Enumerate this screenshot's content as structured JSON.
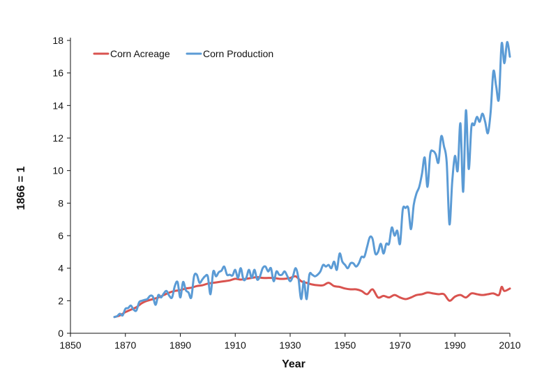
{
  "chart_data": {
    "type": "line",
    "xlabel": "Year",
    "ylabel": "1866 = 1",
    "xlim": [
      1850,
      2010
    ],
    "ylim": [
      0,
      18
    ],
    "x_ticks": [
      1850,
      1870,
      1890,
      1910,
      1930,
      1950,
      1970,
      1990,
      2010
    ],
    "y_ticks": [
      0,
      2,
      4,
      6,
      8,
      10,
      12,
      14,
      16,
      18
    ],
    "grid": false,
    "legend_position": "top-left",
    "series": [
      {
        "name": "Corn Acreage",
        "color": "#d9534f",
        "points": [
          [
            1866,
            1.0
          ],
          [
            1868,
            1.1
          ],
          [
            1870,
            1.3
          ],
          [
            1872,
            1.45
          ],
          [
            1874,
            1.6
          ],
          [
            1876,
            1.85
          ],
          [
            1878,
            2.0
          ],
          [
            1880,
            2.1
          ],
          [
            1882,
            2.2
          ],
          [
            1884,
            2.35
          ],
          [
            1886,
            2.5
          ],
          [
            1888,
            2.6
          ],
          [
            1890,
            2.65
          ],
          [
            1892,
            2.75
          ],
          [
            1894,
            2.8
          ],
          [
            1896,
            2.9
          ],
          [
            1898,
            2.95
          ],
          [
            1900,
            3.05
          ],
          [
            1902,
            3.1
          ],
          [
            1904,
            3.15
          ],
          [
            1906,
            3.2
          ],
          [
            1908,
            3.25
          ],
          [
            1910,
            3.35
          ],
          [
            1912,
            3.3
          ],
          [
            1914,
            3.35
          ],
          [
            1916,
            3.4
          ],
          [
            1918,
            3.45
          ],
          [
            1920,
            3.4
          ],
          [
            1922,
            3.4
          ],
          [
            1924,
            3.4
          ],
          [
            1926,
            3.35
          ],
          [
            1928,
            3.35
          ],
          [
            1930,
            3.4
          ],
          [
            1932,
            3.5
          ],
          [
            1934,
            3.2
          ],
          [
            1936,
            3.1
          ],
          [
            1938,
            3.0
          ],
          [
            1940,
            2.95
          ],
          [
            1942,
            2.95
          ],
          [
            1944,
            3.1
          ],
          [
            1946,
            2.9
          ],
          [
            1948,
            2.85
          ],
          [
            1950,
            2.75
          ],
          [
            1952,
            2.7
          ],
          [
            1954,
            2.7
          ],
          [
            1956,
            2.6
          ],
          [
            1958,
            2.4
          ],
          [
            1960,
            2.7
          ],
          [
            1962,
            2.2
          ],
          [
            1964,
            2.3
          ],
          [
            1966,
            2.2
          ],
          [
            1968,
            2.35
          ],
          [
            1970,
            2.2
          ],
          [
            1972,
            2.1
          ],
          [
            1974,
            2.2
          ],
          [
            1976,
            2.35
          ],
          [
            1978,
            2.4
          ],
          [
            1980,
            2.5
          ],
          [
            1982,
            2.45
          ],
          [
            1984,
            2.4
          ],
          [
            1986,
            2.4
          ],
          [
            1988,
            2.0
          ],
          [
            1990,
            2.25
          ],
          [
            1992,
            2.35
          ],
          [
            1994,
            2.2
          ],
          [
            1996,
            2.45
          ],
          [
            1998,
            2.4
          ],
          [
            2000,
            2.35
          ],
          [
            2002,
            2.4
          ],
          [
            2004,
            2.45
          ],
          [
            2006,
            2.35
          ],
          [
            2007,
            2.85
          ],
          [
            2008,
            2.6
          ],
          [
            2010,
            2.75
          ]
        ]
      },
      {
        "name": "Corn Production",
        "color": "#5b9bd5",
        "points": [
          [
            1866,
            1.0
          ],
          [
            1867,
            1.05
          ],
          [
            1868,
            1.2
          ],
          [
            1869,
            1.1
          ],
          [
            1870,
            1.5
          ],
          [
            1871,
            1.55
          ],
          [
            1872,
            1.7
          ],
          [
            1873,
            1.45
          ],
          [
            1874,
            1.4
          ],
          [
            1875,
            1.9
          ],
          [
            1876,
            2.0
          ],
          [
            1877,
            2.05
          ],
          [
            1878,
            2.1
          ],
          [
            1879,
            2.3
          ],
          [
            1880,
            2.25
          ],
          [
            1881,
            1.75
          ],
          [
            1882,
            2.35
          ],
          [
            1883,
            2.2
          ],
          [
            1884,
            2.45
          ],
          [
            1885,
            2.6
          ],
          [
            1886,
            2.3
          ],
          [
            1887,
            2.2
          ],
          [
            1888,
            2.9
          ],
          [
            1889,
            3.15
          ],
          [
            1890,
            2.2
          ],
          [
            1891,
            3.15
          ],
          [
            1892,
            2.65
          ],
          [
            1893,
            2.5
          ],
          [
            1894,
            2.2
          ],
          [
            1895,
            3.5
          ],
          [
            1896,
            3.6
          ],
          [
            1897,
            3.1
          ],
          [
            1898,
            3.3
          ],
          [
            1899,
            3.5
          ],
          [
            1900,
            3.5
          ],
          [
            1901,
            2.4
          ],
          [
            1902,
            3.8
          ],
          [
            1903,
            3.5
          ],
          [
            1904,
            3.75
          ],
          [
            1905,
            3.85
          ],
          [
            1906,
            4.1
          ],
          [
            1907,
            3.6
          ],
          [
            1908,
            3.6
          ],
          [
            1909,
            3.55
          ],
          [
            1910,
            3.9
          ],
          [
            1911,
            3.4
          ],
          [
            1912,
            4.0
          ],
          [
            1913,
            3.3
          ],
          [
            1914,
            3.4
          ],
          [
            1915,
            3.9
          ],
          [
            1916,
            3.4
          ],
          [
            1917,
            3.9
          ],
          [
            1918,
            3.3
          ],
          [
            1919,
            3.5
          ],
          [
            1920,
            4.0
          ],
          [
            1921,
            4.1
          ],
          [
            1922,
            3.8
          ],
          [
            1923,
            4.0
          ],
          [
            1924,
            3.2
          ],
          [
            1925,
            3.8
          ],
          [
            1926,
            3.6
          ],
          [
            1927,
            3.6
          ],
          [
            1928,
            3.8
          ],
          [
            1929,
            3.5
          ],
          [
            1930,
            3.2
          ],
          [
            1931,
            3.5
          ],
          [
            1932,
            4.0
          ],
          [
            1933,
            3.4
          ],
          [
            1934,
            2.1
          ],
          [
            1935,
            3.2
          ],
          [
            1936,
            2.1
          ],
          [
            1937,
            3.6
          ],
          [
            1938,
            3.6
          ],
          [
            1939,
            3.5
          ],
          [
            1940,
            3.6
          ],
          [
            1941,
            3.8
          ],
          [
            1942,
            4.2
          ],
          [
            1943,
            4.1
          ],
          [
            1944,
            4.2
          ],
          [
            1945,
            4.0
          ],
          [
            1946,
            4.4
          ],
          [
            1947,
            3.9
          ],
          [
            1948,
            4.9
          ],
          [
            1949,
            4.4
          ],
          [
            1950,
            4.2
          ],
          [
            1951,
            4.0
          ],
          [
            1952,
            4.3
          ],
          [
            1953,
            4.3
          ],
          [
            1954,
            4.1
          ],
          [
            1955,
            4.3
          ],
          [
            1956,
            4.7
          ],
          [
            1957,
            4.7
          ],
          [
            1958,
            5.3
          ],
          [
            1959,
            5.9
          ],
          [
            1960,
            5.8
          ],
          [
            1961,
            4.9
          ],
          [
            1962,
            5.0
          ],
          [
            1963,
            5.5
          ],
          [
            1964,
            4.9
          ],
          [
            1965,
            5.5
          ],
          [
            1966,
            5.5
          ],
          [
            1967,
            6.5
          ],
          [
            1968,
            6.0
          ],
          [
            1969,
            6.3
          ],
          [
            1970,
            5.5
          ],
          [
            1971,
            7.6
          ],
          [
            1972,
            7.7
          ],
          [
            1973,
            7.7
          ],
          [
            1974,
            6.4
          ],
          [
            1975,
            7.9
          ],
          [
            1976,
            8.6
          ],
          [
            1977,
            9.0
          ],
          [
            1978,
            9.8
          ],
          [
            1979,
            10.8
          ],
          [
            1980,
            9.0
          ],
          [
            1981,
            11.0
          ],
          [
            1982,
            11.2
          ],
          [
            1983,
            11.0
          ],
          [
            1984,
            10.5
          ],
          [
            1985,
            12.1
          ],
          [
            1986,
            11.5
          ],
          [
            1987,
            10.5
          ],
          [
            1988,
            6.7
          ],
          [
            1989,
            9.3
          ],
          [
            1990,
            10.9
          ],
          [
            1991,
            10.0
          ],
          [
            1992,
            12.9
          ],
          [
            1993,
            8.7
          ],
          [
            1994,
            13.7
          ],
          [
            1995,
            10.1
          ],
          [
            1996,
            12.7
          ],
          [
            1997,
            12.8
          ],
          [
            1998,
            13.3
          ],
          [
            1999,
            13.0
          ],
          [
            2000,
            13.5
          ],
          [
            2001,
            13.0
          ],
          [
            2002,
            12.3
          ],
          [
            2003,
            13.6
          ],
          [
            2004,
            16.1
          ],
          [
            2005,
            15.2
          ],
          [
            2006,
            14.4
          ],
          [
            2007,
            17.8
          ],
          [
            2008,
            16.6
          ],
          [
            2009,
            17.9
          ],
          [
            2010,
            17.0
          ]
        ]
      }
    ]
  }
}
